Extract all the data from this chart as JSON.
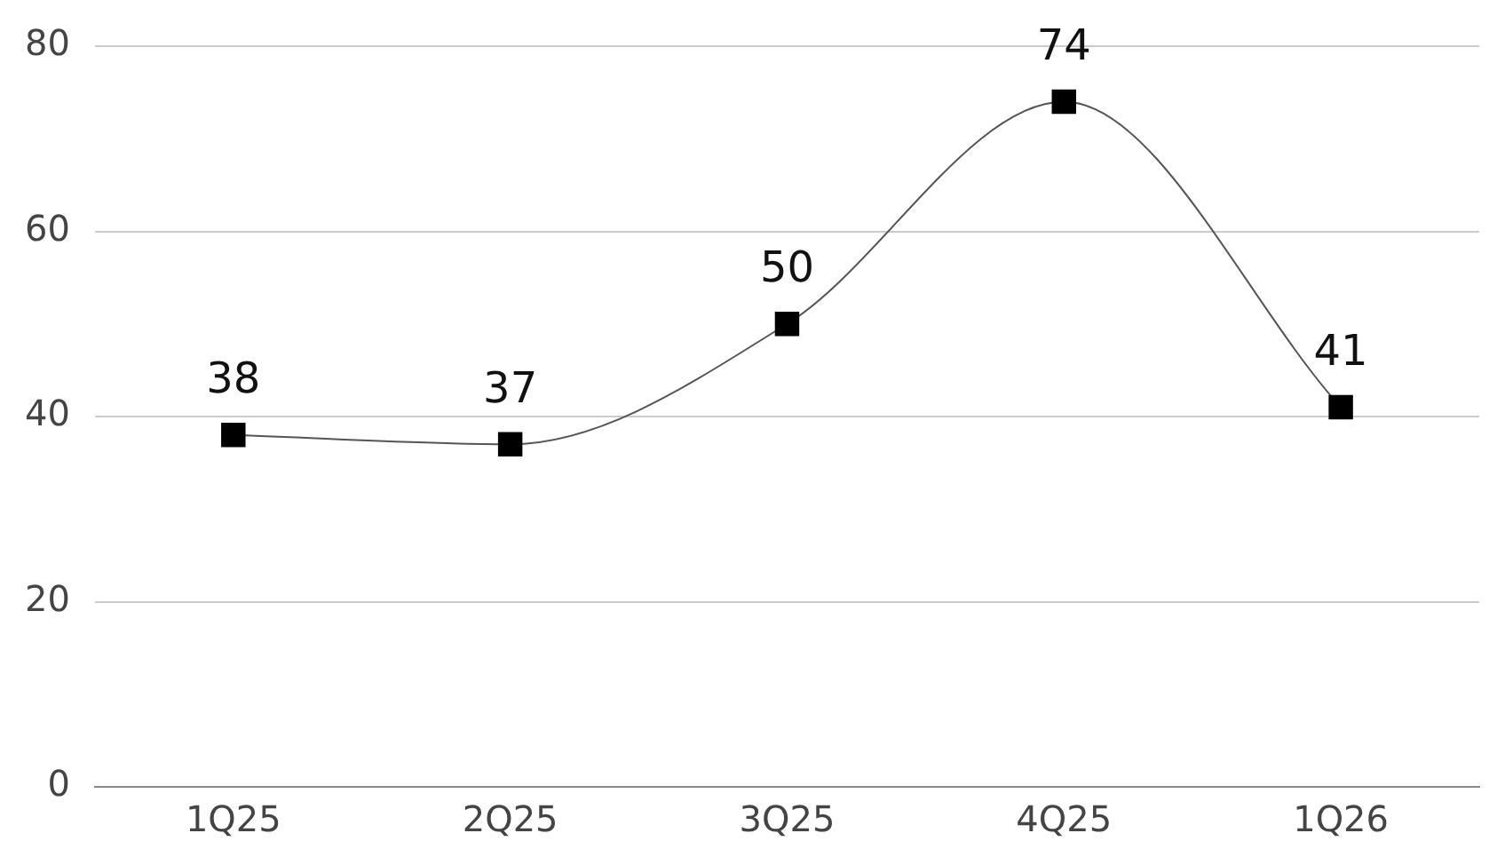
{
  "chart_data": {
    "type": "line",
    "categories": [
      "1Q25",
      "2Q25",
      "3Q25",
      "4Q25",
      "1Q26"
    ],
    "series": [
      {
        "color": "#000000",
        "values": [
          38,
          37,
          50,
          74,
          41
        ]
      }
    ],
    "ylim": [
      0,
      80
    ],
    "yticks": [
      0,
      20,
      40,
      60,
      80
    ],
    "grid": "y",
    "legend": false,
    "marker": "square",
    "line_style": "solid",
    "data_labels": true
  }
}
